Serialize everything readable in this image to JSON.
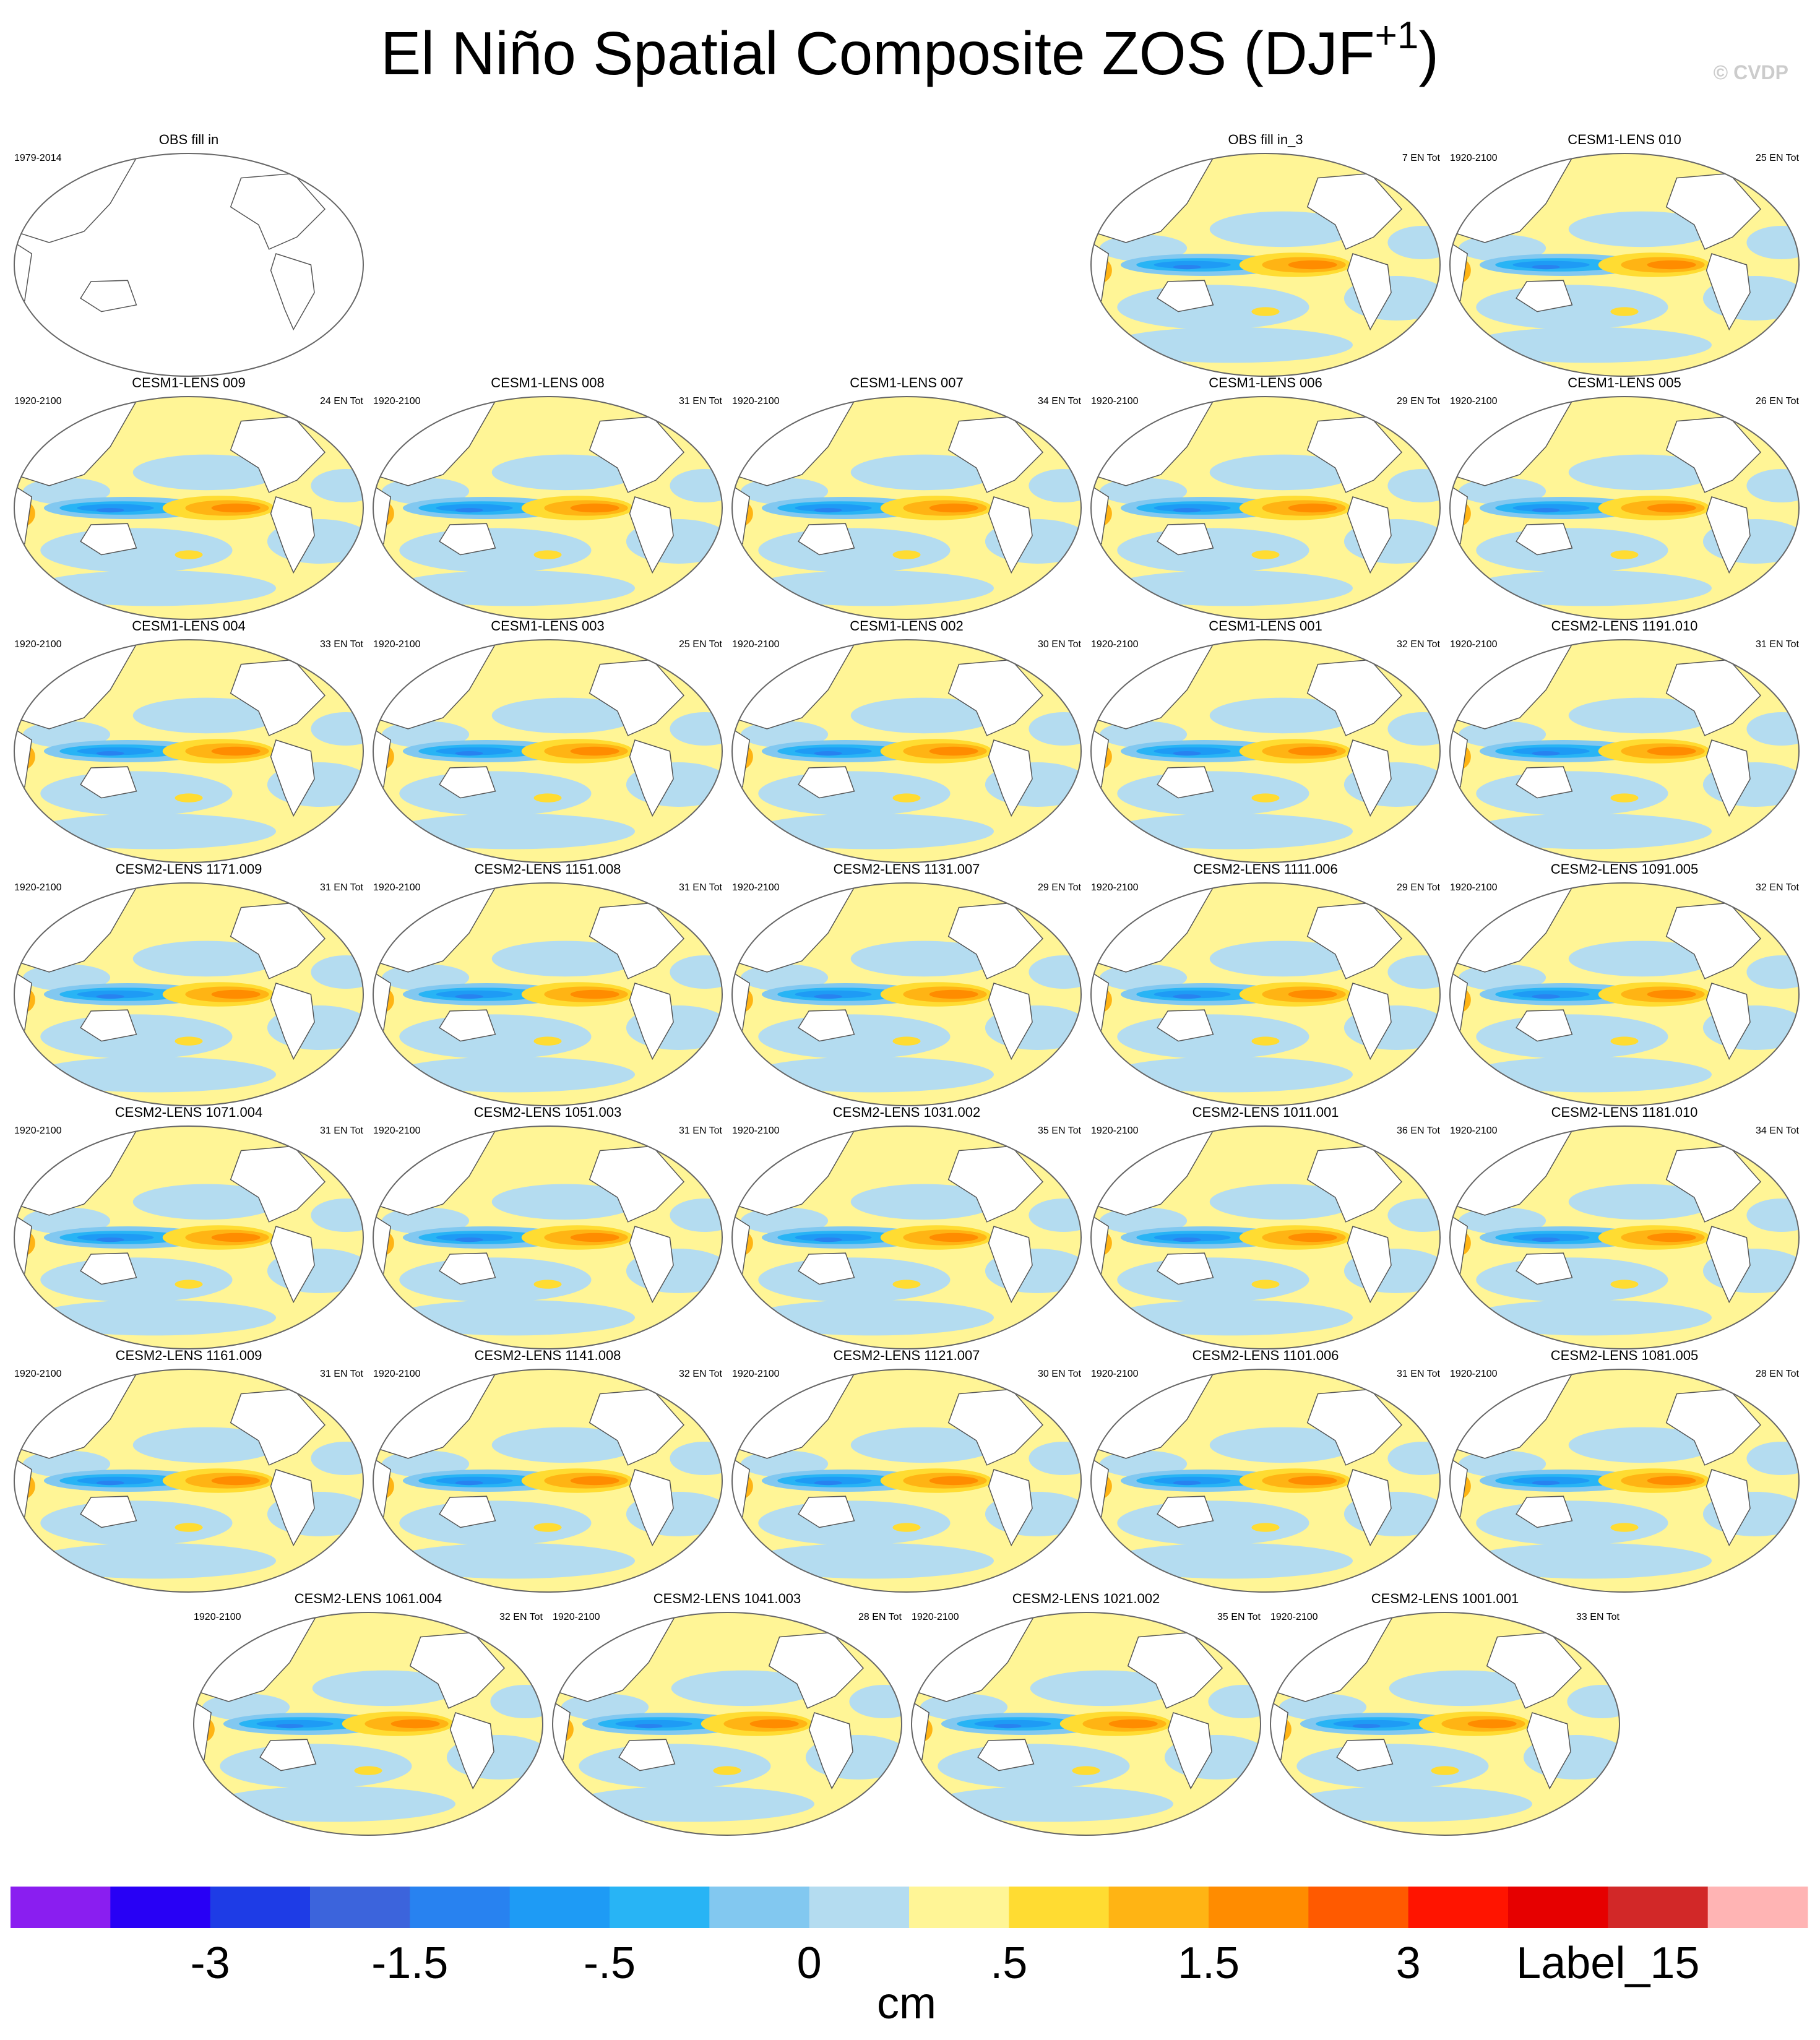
{
  "title": "El Niño Spatial Composite ZOS (DJF",
  "title_superscript": "+1",
  "title_end": ")",
  "watermark": "© CVDP",
  "rows": [
    [
      {
        "title": "OBS fill in",
        "left": "1979-2014"
      },
      null,
      null,
      {
        "title": "OBS fill in_3",
        "right": "7 EN Tot"
      },
      {
        "title": "CESM1-LENS 010",
        "left": "1920-2100",
        "right": "25 EN Tot"
      }
    ],
    [
      {
        "title": "CESM1-LENS 009",
        "left": "1920-2100",
        "right": "24 EN Tot"
      },
      {
        "title": "CESM1-LENS 008",
        "left": "1920-2100",
        "right": "31 EN Tot"
      },
      {
        "title": "CESM1-LENS 007",
        "left": "1920-2100",
        "right": "34 EN Tot"
      },
      {
        "title": "CESM1-LENS 006",
        "left": "1920-2100",
        "right": "29 EN Tot"
      },
      {
        "title": "CESM1-LENS 005",
        "left": "1920-2100",
        "right": "26 EN Tot"
      }
    ],
    [
      {
        "title": "CESM1-LENS 004",
        "left": "1920-2100",
        "right": "33 EN Tot"
      },
      {
        "title": "CESM1-LENS 003",
        "left": "1920-2100",
        "right": "25 EN Tot"
      },
      {
        "title": "CESM1-LENS 002",
        "left": "1920-2100",
        "right": "30 EN Tot"
      },
      {
        "title": "CESM1-LENS 001",
        "left": "1920-2100",
        "right": "32 EN Tot"
      },
      {
        "title": "CESM2-LENS 1191.010",
        "left": "1920-2100",
        "right": "31 EN Tot"
      }
    ],
    [
      {
        "title": "CESM2-LENS 1171.009",
        "left": "1920-2100",
        "right": "31 EN Tot"
      },
      {
        "title": "CESM2-LENS 1151.008",
        "left": "1920-2100",
        "right": "31 EN Tot"
      },
      {
        "title": "CESM2-LENS 1131.007",
        "left": "1920-2100",
        "right": "29 EN Tot"
      },
      {
        "title": "CESM2-LENS 1111.006",
        "left": "1920-2100",
        "right": "29 EN Tot"
      },
      {
        "title": "CESM2-LENS 1091.005",
        "left": "1920-2100",
        "right": "32 EN Tot"
      }
    ],
    [
      {
        "title": "CESM2-LENS 1071.004",
        "left": "1920-2100",
        "right": "31 EN Tot"
      },
      {
        "title": "CESM2-LENS 1051.003",
        "left": "1920-2100",
        "right": "31 EN Tot"
      },
      {
        "title": "CESM2-LENS 1031.002",
        "left": "1920-2100",
        "right": "35 EN Tot"
      },
      {
        "title": "CESM2-LENS 1011.001",
        "left": "1920-2100",
        "right": "36 EN Tot"
      },
      {
        "title": "CESM2-LENS 1181.010",
        "left": "1920-2100",
        "right": "34 EN Tot"
      }
    ],
    [
      {
        "title": "CESM2-LENS 1161.009",
        "left": "1920-2100",
        "right": "31 EN Tot"
      },
      {
        "title": "CESM2-LENS 1141.008",
        "left": "1920-2100",
        "right": "32 EN Tot"
      },
      {
        "title": "CESM2-LENS 1121.007",
        "left": "1920-2100",
        "right": "30 EN Tot"
      },
      {
        "title": "CESM2-LENS 1101.006",
        "left": "1920-2100",
        "right": "31 EN Tot"
      },
      {
        "title": "CESM2-LENS 1081.005",
        "left": "1920-2100",
        "right": "28 EN Tot"
      }
    ],
    [
      {
        "title": "CESM2-LENS 1061.004",
        "left": "1920-2100",
        "right": "32 EN Tot"
      },
      {
        "title": "CESM2-LENS 1041.003",
        "left": "1920-2100",
        "right": "28 EN Tot"
      },
      {
        "title": "CESM2-LENS 1021.002",
        "left": "1920-2100",
        "right": "35 EN Tot"
      },
      {
        "title": "CESM2-LENS 1001.001",
        "left": "1920-2100",
        "right": "33 EN Tot"
      }
    ]
  ],
  "colorbar": {
    "colors": [
      "#8a1ef0",
      "#2800f5",
      "#1e3ce6",
      "#3c64dc",
      "#2882f0",
      "#1e9bf5",
      "#28b4f5",
      "#82c8f0",
      "#b4dcf0",
      "#fff596",
      "#ffdc32",
      "#ffb414",
      "#ff8c00",
      "#ff5a00",
      "#ff1400",
      "#e60000",
      "#d22828",
      "#ffb4b4"
    ],
    "labels": [
      "-3",
      "-1.5",
      "-.5",
      "0",
      ".5",
      "1.5",
      "3",
      "Label_15"
    ],
    "unit": "cm"
  }
}
